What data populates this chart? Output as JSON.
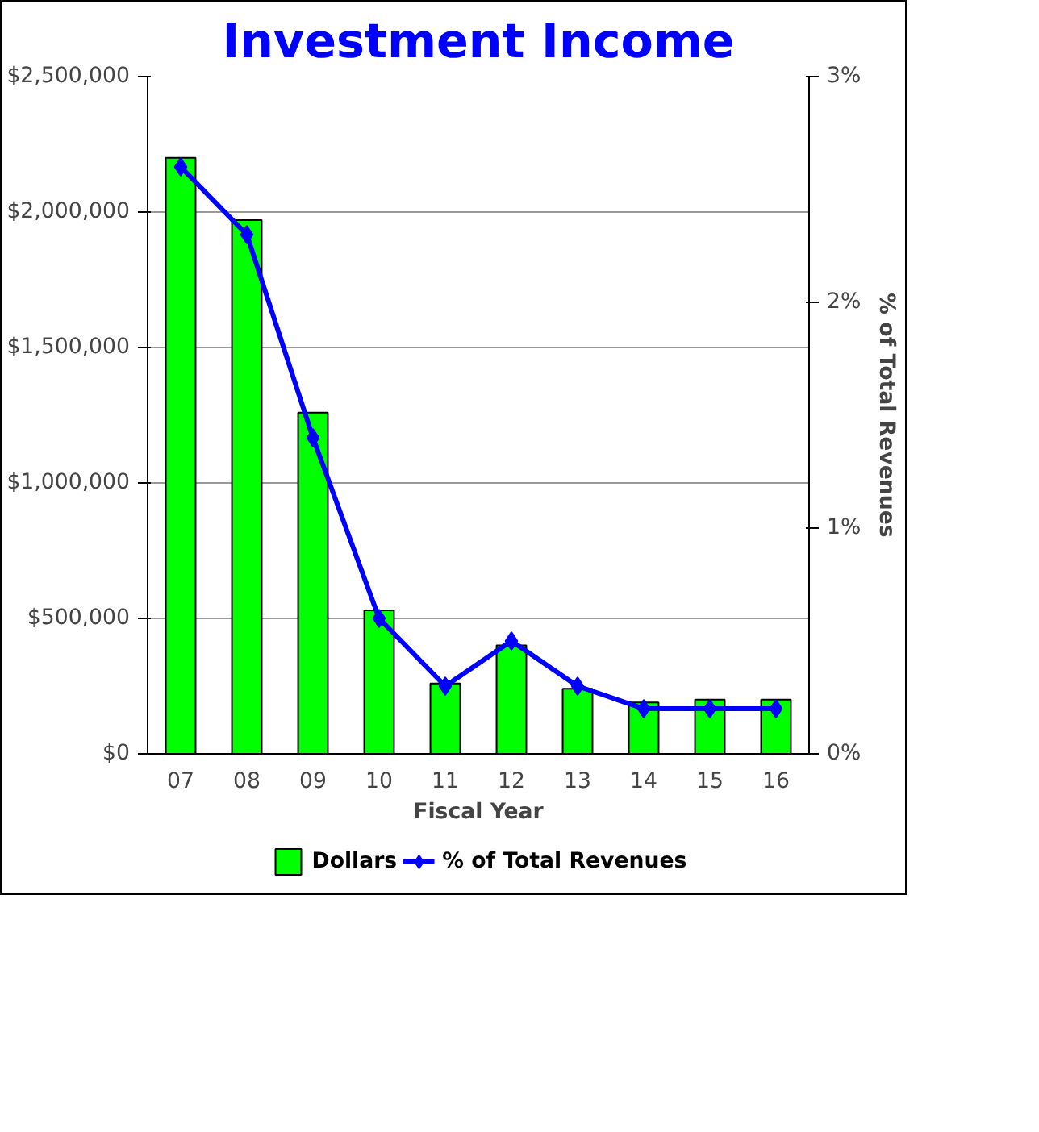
{
  "chart_data": {
    "type": "bar",
    "title": "Investment Income",
    "xlabel": "Fiscal Year",
    "y2label": "% of Total Revenues",
    "categories": [
      "07",
      "08",
      "09",
      "10",
      "11",
      "12",
      "13",
      "14",
      "15",
      "16"
    ],
    "series": [
      {
        "name": "Dollars",
        "color": "#00ff00",
        "values": [
          2200000,
          1970000,
          1260000,
          530000,
          260000,
          400000,
          240000,
          190000,
          200000,
          200000
        ]
      },
      {
        "name": "% of Total Revenues",
        "type": "line",
        "axis": "y2",
        "color": "#0000ff",
        "marker": "diamond",
        "values": [
          2.6,
          2.3,
          1.4,
          0.6,
          0.3,
          0.5,
          0.3,
          0.2,
          0.2,
          0.2
        ]
      }
    ],
    "ylim": [
      0,
      2500000
    ],
    "yticks": [
      {
        "value": 0,
        "label": "$0"
      },
      {
        "value": 500000,
        "label": "$500,000"
      },
      {
        "value": 1000000,
        "label": "$1,000,000"
      },
      {
        "value": 1500000,
        "label": "$1,500,000"
      },
      {
        "value": 2000000,
        "label": "$2,000,000"
      },
      {
        "value": 2500000,
        "label": "$2,500,000"
      }
    ],
    "y2lim": [
      0,
      3
    ],
    "y2ticks": [
      {
        "value": 0,
        "label": "0%"
      },
      {
        "value": 1,
        "label": "1%"
      },
      {
        "value": 2,
        "label": "2%"
      },
      {
        "value": 3,
        "label": "3%"
      }
    ],
    "grid": "y",
    "legend": "bottom"
  }
}
